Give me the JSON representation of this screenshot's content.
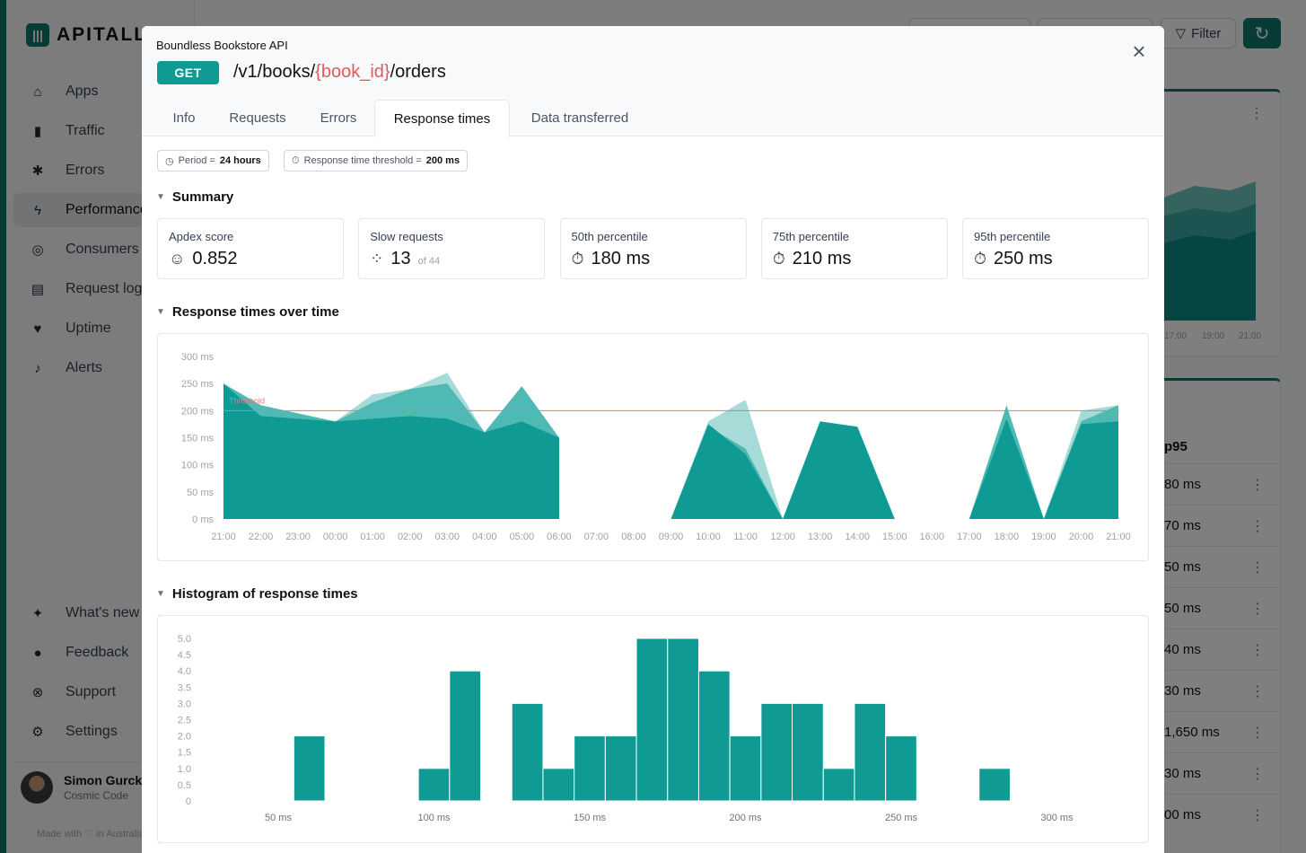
{
  "background": {
    "logo": "APITALLY",
    "nav": [
      {
        "label": "Apps",
        "icon": "home-icon",
        "glyph": "⌂"
      },
      {
        "label": "Traffic",
        "icon": "bar-chart-icon",
        "glyph": "▮"
      },
      {
        "label": "Errors",
        "icon": "bug-icon",
        "glyph": "✱"
      },
      {
        "label": "Performance",
        "icon": "lightning-icon",
        "glyph": "ϟ"
      },
      {
        "label": "Consumers",
        "icon": "fingerprint-icon",
        "glyph": "◎"
      },
      {
        "label": "Request log",
        "icon": "scroll-icon",
        "glyph": "▤"
      },
      {
        "label": "Uptime",
        "icon": "heart-pulse-icon",
        "glyph": "♥"
      },
      {
        "label": "Alerts",
        "icon": "bell-icon",
        "glyph": "♪"
      }
    ],
    "nav_bottom": [
      {
        "label": "What's new",
        "icon": "sparkles-icon",
        "glyph": "✦"
      },
      {
        "label": "Feedback",
        "icon": "chat-icon",
        "glyph": "●"
      },
      {
        "label": "Support",
        "icon": "lifebuoy-icon",
        "glyph": "⊗"
      },
      {
        "label": "Settings",
        "icon": "gear-icon",
        "glyph": "⚙"
      }
    ],
    "user": {
      "name": "Simon Gurcke",
      "org": "Cosmic Code"
    },
    "made_with": "Made with ♡ in Australia",
    "filter_label": "Filter",
    "card_ticks": [
      "17:00",
      "19:00",
      "21:00"
    ],
    "col_header": "p95",
    "rows": [
      "80 ms",
      "70 ms",
      "50 ms",
      "50 ms",
      "40 ms",
      "30 ms",
      "1,650 ms",
      "30 ms",
      "00 ms"
    ]
  },
  "modal": {
    "app_name": "Boundless Bookstore API",
    "method": "GET",
    "path_prefix": "/v1/books/",
    "path_param": "{book_id}",
    "path_suffix": "/orders",
    "tabs": [
      "Info",
      "Requests",
      "Errors",
      "Response times",
      "Data transferred"
    ],
    "active_tab": "Response times",
    "chip_period_label": "Period = ",
    "chip_period_value": "24 hours",
    "chip_threshold_label": "Response time threshold = ",
    "chip_threshold_value": "200 ms",
    "summary_title": "Summary",
    "stats": [
      {
        "label": "Apdex score",
        "value": "0.852",
        "icon": "smiley-icon",
        "glyph": "☺"
      },
      {
        "label": "Slow requests",
        "value": "13",
        "of": "of 44",
        "icon": "spinner-icon",
        "glyph": "⁘"
      },
      {
        "label": "50th percentile",
        "value": "180 ms",
        "icon": "stopwatch-icon",
        "glyph": "⏱"
      },
      {
        "label": "75th percentile",
        "value": "210 ms",
        "icon": "stopwatch-icon",
        "glyph": "⏱"
      },
      {
        "label": "95th percentile",
        "value": "250 ms",
        "icon": "stopwatch-icon",
        "glyph": "⏱"
      }
    ],
    "rt_title": "Response times over time",
    "hist_title": "Histogram of response times"
  },
  "colors": {
    "teal_dark": "#0f9a93",
    "teal_mid": "#4fbab4",
    "teal_light": "#a7dbd8",
    "threshold": "#e07a7a"
  },
  "chart_data": [
    {
      "type": "area",
      "title": "Response times over time",
      "x": [
        "21:00",
        "22:00",
        "23:00",
        "00:00",
        "01:00",
        "02:00",
        "03:00",
        "04:00",
        "05:00",
        "06:00",
        "07:00",
        "08:00",
        "09:00",
        "10:00",
        "11:00",
        "12:00",
        "13:00",
        "14:00",
        "15:00",
        "16:00",
        "17:00",
        "18:00",
        "19:00",
        "20:00",
        "21:00"
      ],
      "y_ticks": [
        "0 ms",
        "50 ms",
        "100 ms",
        "150 ms",
        "200 ms",
        "250 ms",
        "300 ms"
      ],
      "ylim": [
        0,
        300
      ],
      "threshold": {
        "value": 200,
        "label": "Threshold"
      },
      "series": [
        {
          "color": "light",
          "values": [
            250,
            200,
            190,
            180,
            230,
            240,
            270,
            160,
            245,
            150,
            null,
            null,
            0,
            180,
            220,
            0,
            180,
            170,
            0,
            null,
            0,
            200,
            0,
            200,
            210
          ]
        },
        {
          "color": "mid",
          "values": [
            250,
            210,
            195,
            180,
            215,
            240,
            250,
            160,
            245,
            150,
            null,
            null,
            0,
            170,
            130,
            0,
            180,
            170,
            0,
            null,
            0,
            210,
            0,
            180,
            210
          ]
        },
        {
          "color": "dark",
          "values": [
            250,
            190,
            185,
            180,
            185,
            190,
            185,
            160,
            180,
            150,
            null,
            null,
            0,
            175,
            120,
            0,
            180,
            170,
            0,
            null,
            0,
            185,
            0,
            175,
            180
          ]
        }
      ]
    },
    {
      "type": "bar",
      "title": "Histogram of response times",
      "x_ticks": [
        "50 ms",
        "100 ms",
        "150 ms",
        "200 ms",
        "250 ms",
        "300 ms"
      ],
      "y_ticks": [
        "0",
        "0.5",
        "1.0",
        "1.5",
        "2.0",
        "2.5",
        "3.0",
        "3.5",
        "4.0",
        "4.5",
        "5.0"
      ],
      "ylim": [
        0,
        5
      ],
      "bins": [
        {
          "start": 55,
          "end": 65,
          "value": 2
        },
        {
          "start": 95,
          "end": 105,
          "value": 1
        },
        {
          "start": 105,
          "end": 115,
          "value": 4
        },
        {
          "start": 125,
          "end": 135,
          "value": 3
        },
        {
          "start": 135,
          "end": 145,
          "value": 1
        },
        {
          "start": 145,
          "end": 155,
          "value": 2
        },
        {
          "start": 155,
          "end": 165,
          "value": 2
        },
        {
          "start": 165,
          "end": 175,
          "value": 5
        },
        {
          "start": 175,
          "end": 185,
          "value": 5
        },
        {
          "start": 185,
          "end": 195,
          "value": 4
        },
        {
          "start": 195,
          "end": 205,
          "value": 2
        },
        {
          "start": 205,
          "end": 215,
          "value": 3
        },
        {
          "start": 215,
          "end": 225,
          "value": 3
        },
        {
          "start": 225,
          "end": 235,
          "value": 1
        },
        {
          "start": 235,
          "end": 245,
          "value": 3
        },
        {
          "start": 245,
          "end": 255,
          "value": 2
        },
        {
          "start": 275,
          "end": 285,
          "value": 1
        }
      ]
    }
  ]
}
